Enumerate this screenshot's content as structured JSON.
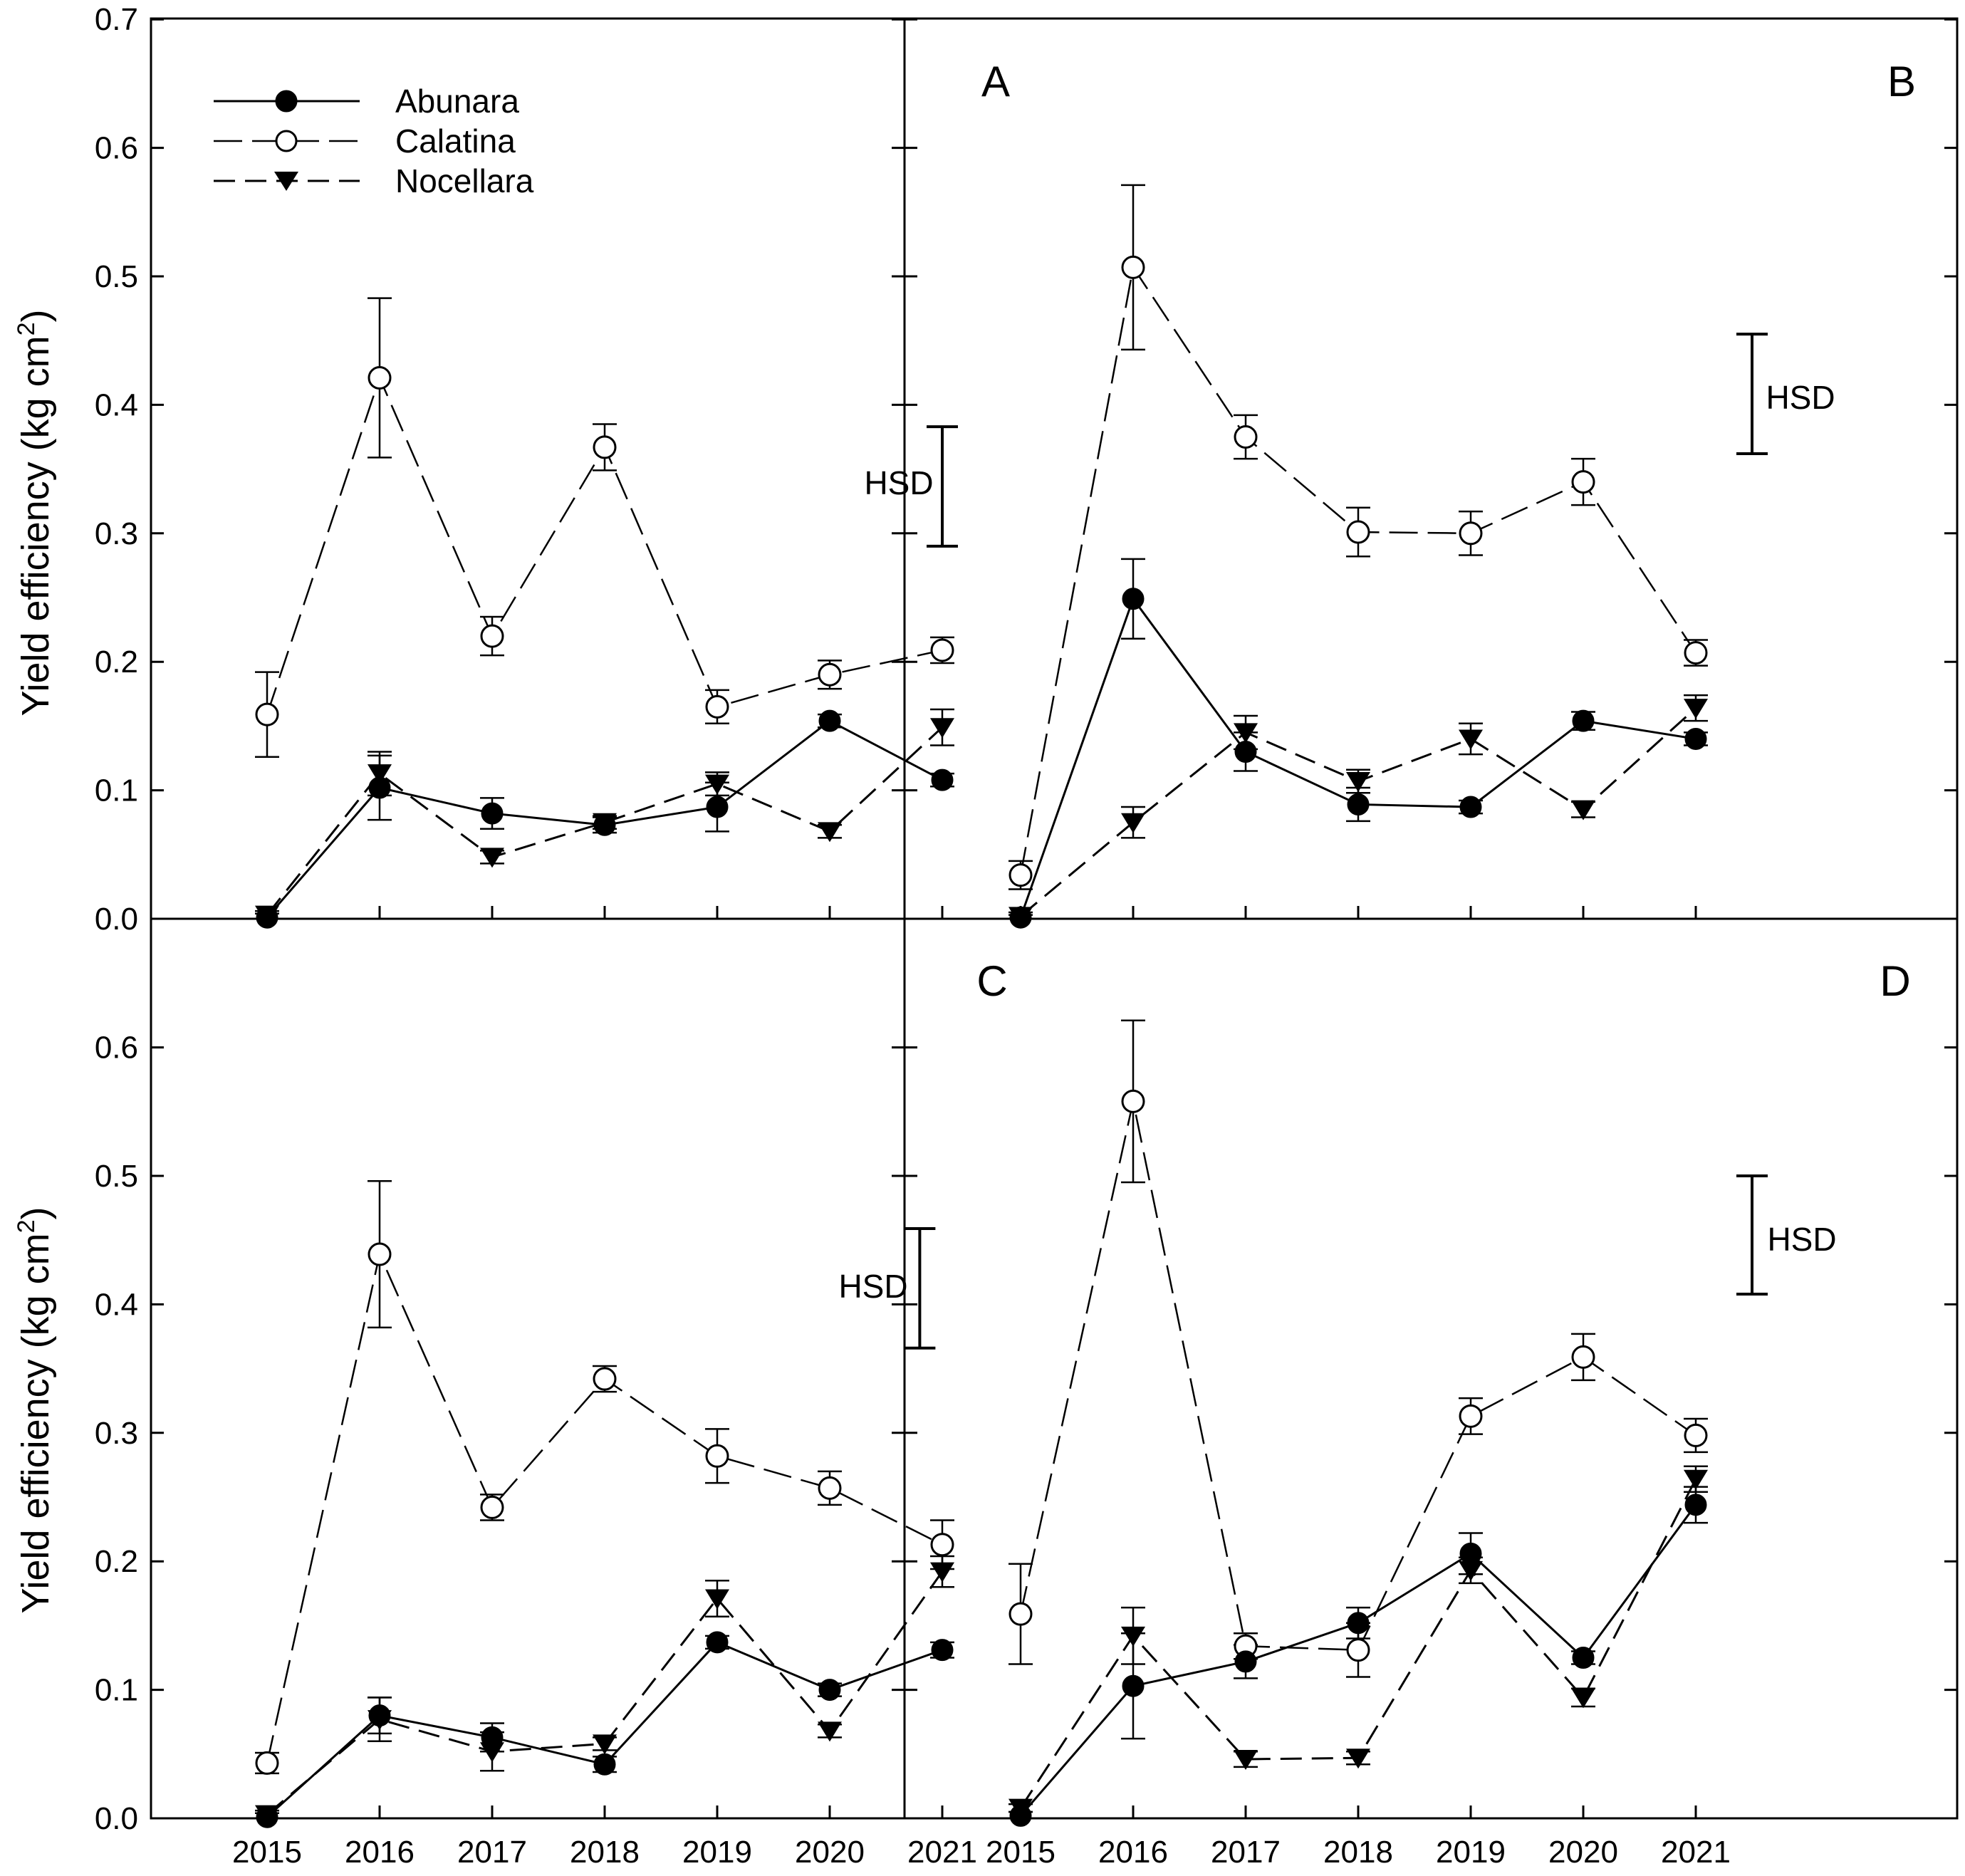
{
  "chart_data": {
    "type": "line",
    "ylabel_main": "Yield efficiency (kg cm",
    "ylabel_sup": "2",
    "ylabel_close": ")",
    "categories": [
      "2015",
      "2016",
      "2017",
      "2018",
      "2019",
      "2020",
      "2021"
    ],
    "y_ticks_top": [
      "0.0",
      "0.1",
      "0.2",
      "0.3",
      "0.4",
      "0.5",
      "0.6",
      "0.7"
    ],
    "y_ticks_bottom": [
      "0.0",
      "0.1",
      "0.2",
      "0.3",
      "0.4",
      "0.5",
      "0.6"
    ],
    "ylim": [
      0,
      0.7
    ],
    "legend": {
      "position": "top-left of panel A",
      "entries": [
        "Abunara",
        "Calatina",
        "Nocellara"
      ]
    },
    "hsd_label": "HSD",
    "panels": [
      {
        "letter": "A",
        "hsd": {
          "low": 0.29,
          "high": 0.383,
          "x": 6.0
        },
        "series": [
          {
            "name": "Abunara",
            "values": [
              0.001,
              0.102,
              0.082,
              0.073,
              0.087,
              0.154,
              0.108
            ],
            "errors": [
              0.003,
              0.025,
              0.012,
              0.006,
              0.019,
              0.005,
              0.005
            ]
          },
          {
            "name": "Calatina",
            "values": [
              0.159,
              0.421,
              0.22,
              0.367,
              0.165,
              0.19,
              0.209
            ],
            "errors": [
              0.033,
              0.062,
              0.015,
              0.018,
              0.013,
              0.011,
              0.01
            ]
          },
          {
            "name": "Nocellara",
            "values": [
              0.003,
              0.113,
              0.048,
              0.075,
              0.105,
              0.068,
              0.149
            ],
            "errors": [
              0.003,
              0.017,
              0.005,
              0.005,
              0.009,
              0.005,
              0.014
            ]
          }
        ]
      },
      {
        "letter": "B",
        "hsd": {
          "low": 0.362,
          "high": 0.455,
          "x": 6.5
        },
        "series": [
          {
            "name": "Abunara",
            "values": [
              0.001,
              0.249,
              0.13,
              0.089,
              0.087,
              0.154,
              0.14
            ],
            "errors": [
              0.002,
              0.031,
              0.015,
              0.013,
              0.005,
              0.007,
              0.005
            ]
          },
          {
            "name": "Calatina",
            "values": [
              0.034,
              0.507,
              0.375,
              0.301,
              0.3,
              0.34,
              0.207
            ],
            "errors": [
              0.011,
              0.064,
              0.017,
              0.019,
              0.017,
              0.018,
              0.01
            ]
          },
          {
            "name": "Nocellara",
            "values": [
              0.002,
              0.075,
              0.145,
              0.107,
              0.14,
              0.085,
              0.164
            ],
            "errors": [
              0.003,
              0.012,
              0.013,
              0.009,
              0.012,
              0.006,
              0.01
            ]
          }
        ]
      },
      {
        "letter": "C",
        "hsd": {
          "low": 0.366,
          "high": 0.459,
          "x": 5.8
        },
        "series": [
          {
            "name": "Abunara",
            "values": [
              0.001,
              0.08,
              0.063,
              0.042,
              0.137,
              0.1,
              0.131
            ],
            "errors": [
              0.003,
              0.014,
              0.011,
              0.006,
              0.005,
              0.005,
              0.006
            ]
          },
          {
            "name": "Calatina",
            "values": [
              0.043,
              0.439,
              0.242,
              0.342,
              0.282,
              0.257,
              0.213
            ],
            "errors": [
              0.008,
              0.057,
              0.01,
              0.01,
              0.021,
              0.013,
              0.019
            ]
          },
          {
            "name": "Nocellara",
            "values": [
              0.003,
              0.077,
              0.052,
              0.058,
              0.171,
              0.068,
              0.192
            ],
            "errors": [
              0.003,
              0.017,
              0.015,
              0.005,
              0.014,
              0.005,
              0.012
            ]
          }
        ]
      },
      {
        "letter": "D",
        "hsd": {
          "low": 0.408,
          "high": 0.5,
          "x": 6.5
        },
        "series": [
          {
            "name": "Abunara",
            "values": [
              0.002,
              0.103,
              0.122,
              0.152,
              0.206,
              0.125,
              0.244
            ],
            "errors": [
              0.003,
              0.041,
              0.013,
              0.012,
              0.016,
              0.005,
              0.014
            ]
          },
          {
            "name": "Calatina",
            "values": [
              0.159,
              0.558,
              0.134,
              0.131,
              0.313,
              0.359,
              0.298
            ],
            "errors": [
              0.039,
              0.063,
              0.01,
              0.021,
              0.014,
              0.018,
              0.013
            ]
          },
          {
            "name": "Nocellara",
            "values": [
              0.008,
              0.142,
              0.046,
              0.047,
              0.193,
              0.094,
              0.264
            ],
            "errors": [
              0.003,
              0.022,
              0.006,
              0.005,
              0.01,
              0.007,
              0.01
            ]
          }
        ]
      }
    ]
  }
}
